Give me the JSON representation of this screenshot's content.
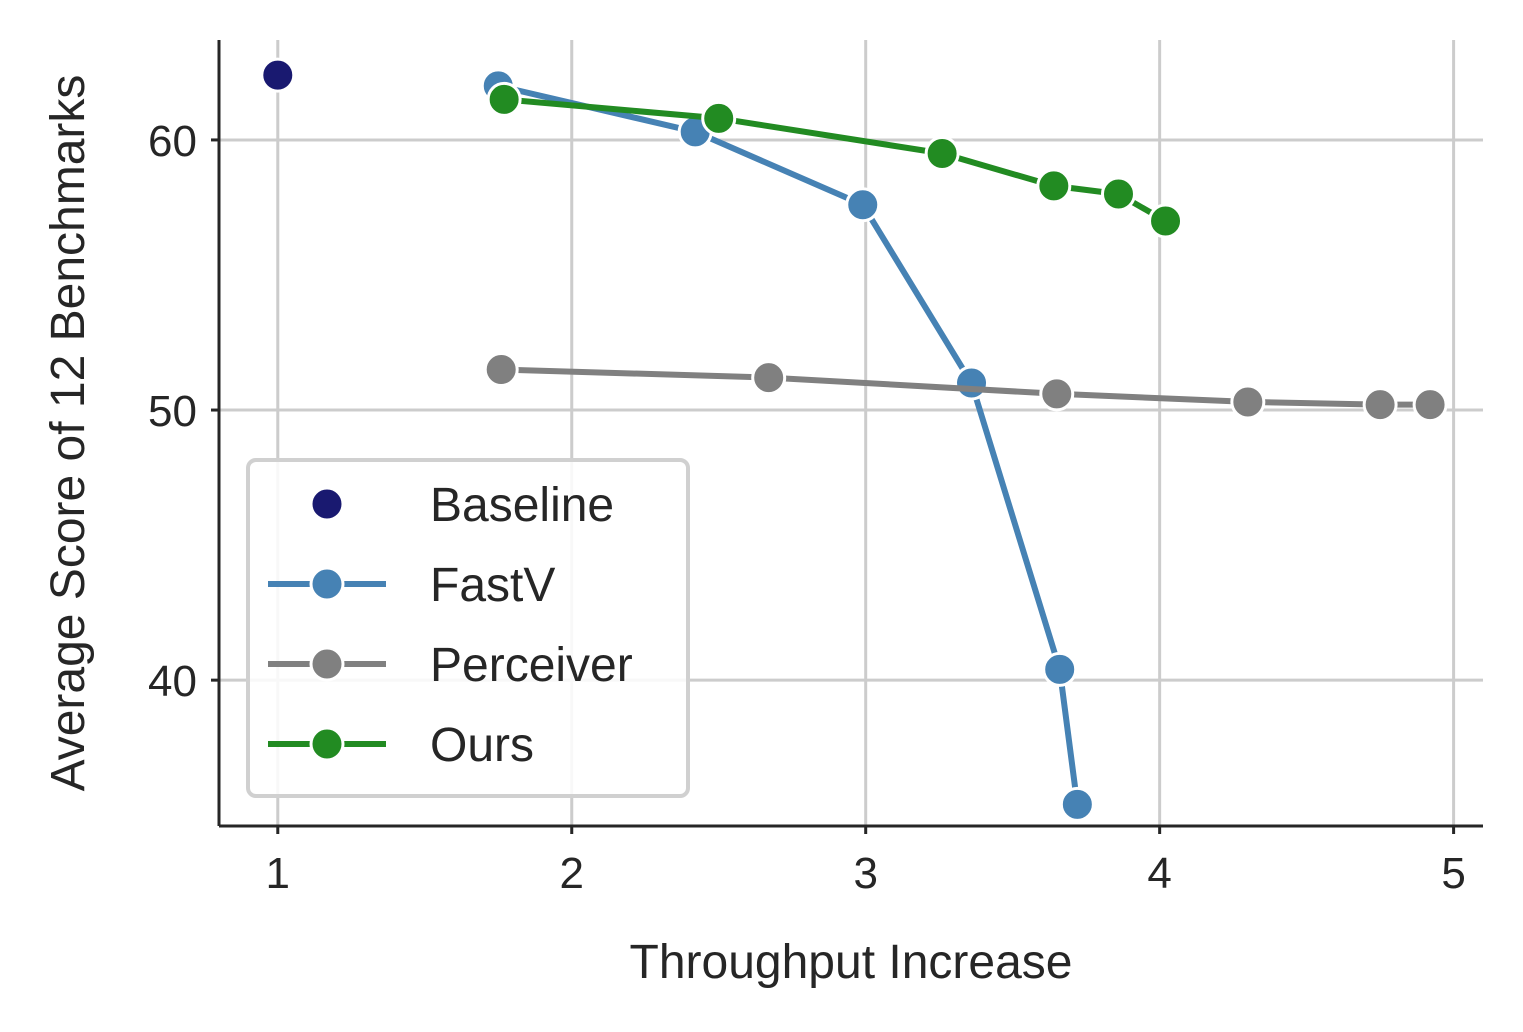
{
  "chart_data": {
    "type": "line",
    "title": "",
    "xlabel": "Throughput Increase",
    "ylabel": "Average Score of 12 Benchmarks",
    "xlim": [
      0.8,
      5.1
    ],
    "ylim": [
      34.6,
      63.7
    ],
    "xticks": [
      1,
      2,
      3,
      4,
      5
    ],
    "yticks": [
      40,
      50,
      60
    ],
    "grid": true,
    "legend_position": "lower-left",
    "series": [
      {
        "name": "Baseline",
        "kind": "scatter",
        "color": "#191970",
        "points": [
          [
            1.0,
            62.4
          ]
        ]
      },
      {
        "name": "FastV",
        "kind": "line",
        "color": "#4682b4",
        "points": [
          [
            1.75,
            62.0
          ],
          [
            2.42,
            60.3
          ],
          [
            2.99,
            57.6
          ],
          [
            3.36,
            51.0
          ],
          [
            3.66,
            40.4
          ],
          [
            3.72,
            35.4
          ]
        ]
      },
      {
        "name": "Perceiver",
        "kind": "line",
        "color": "#808080",
        "points": [
          [
            1.76,
            51.5
          ],
          [
            2.67,
            51.2
          ],
          [
            3.65,
            50.6
          ],
          [
            4.3,
            50.3
          ],
          [
            4.75,
            50.2
          ],
          [
            4.92,
            50.2
          ]
        ]
      },
      {
        "name": "Ours",
        "kind": "line",
        "color": "#228b22",
        "points": [
          [
            1.77,
            61.5
          ],
          [
            2.5,
            60.8
          ],
          [
            3.26,
            59.5
          ],
          [
            3.64,
            58.3
          ],
          [
            3.86,
            58.0
          ],
          [
            4.02,
            57.0
          ]
        ]
      }
    ]
  }
}
